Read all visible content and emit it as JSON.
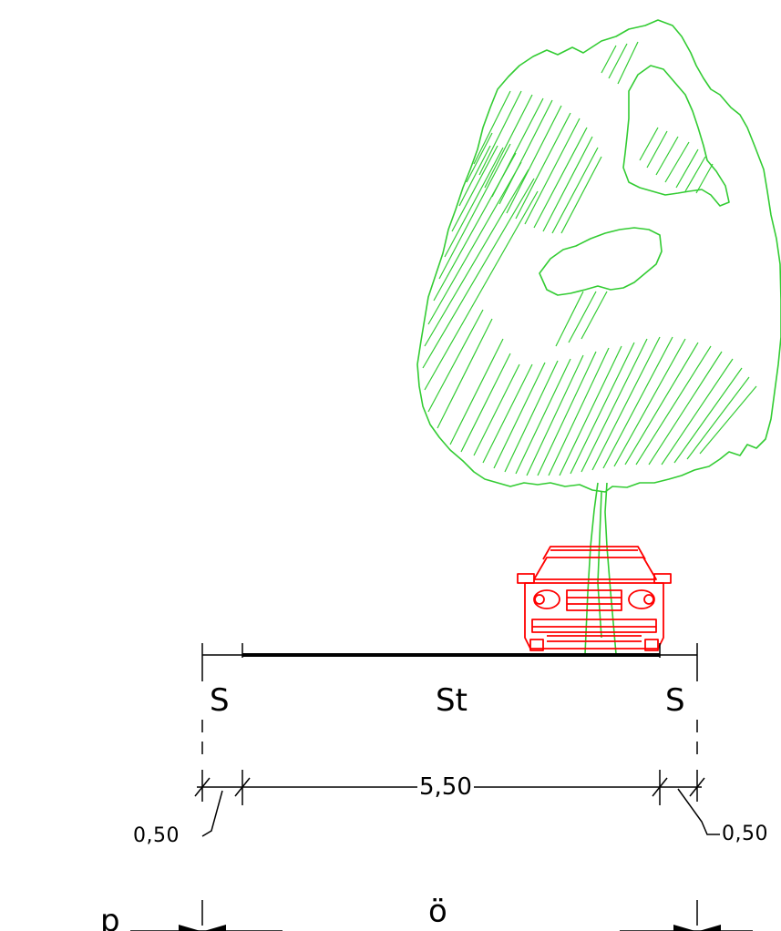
{
  "section": {
    "labels": {
      "left_zone": "S",
      "center_zone": "St",
      "right_zone": "S",
      "main_dimension": "5,50",
      "left_offset": "0,50",
      "right_offset": "0,50",
      "left_boundary": "p",
      "right_boundary": "ö"
    },
    "colors": {
      "tree": "#33cc33",
      "car": "#ff0000",
      "lines": "#000000",
      "background": "#ffffff"
    },
    "icons": {
      "tree": "tree-icon",
      "car": "car-front-icon"
    }
  }
}
